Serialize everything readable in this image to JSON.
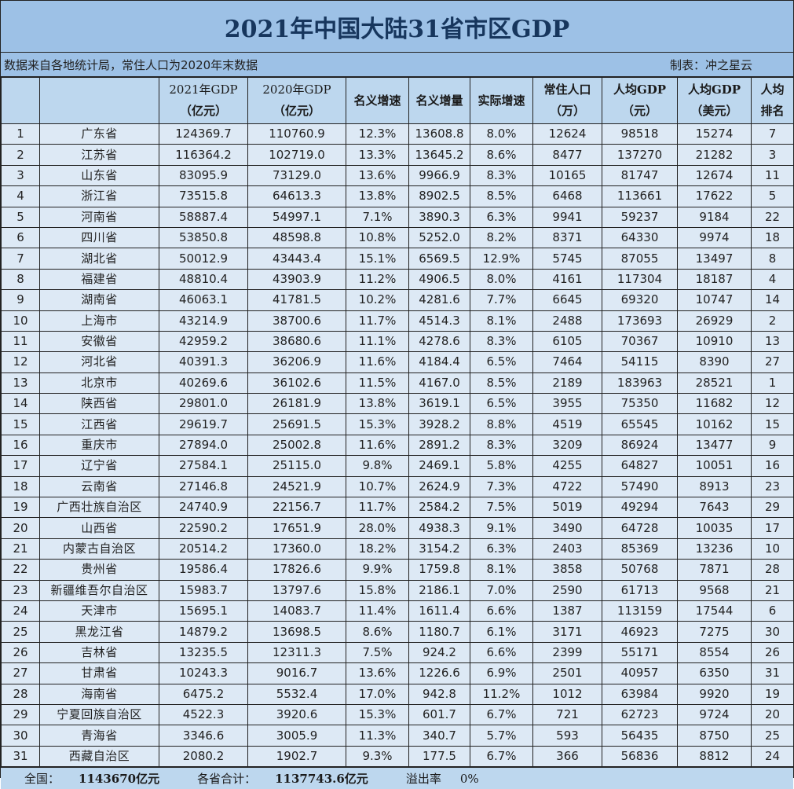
{
  "title": "2021年中国大陆31省市区GDP",
  "note": {
    "source": "数据来自各地统计局，常住人口为2020年末数据",
    "author": "制表：冲之星云"
  },
  "columns": [
    {
      "line1": "",
      "line2": ""
    },
    {
      "line1": "",
      "line2": ""
    },
    {
      "line1": "2021年GDP",
      "line2": "（亿元）"
    },
    {
      "line1": "2020年GDP",
      "line2": "（亿元）"
    },
    {
      "line1": "名义增速",
      "line2": ""
    },
    {
      "line1": "名义增量",
      "line2": ""
    },
    {
      "line1": "实际增速",
      "line2": ""
    },
    {
      "line1": "常住人口",
      "line2": "（万）"
    },
    {
      "line1": "人均GDP",
      "line2": "（元）"
    },
    {
      "line1": "人均GDP",
      "line2": "（美元）"
    },
    {
      "line1": "人均",
      "line2": "排名"
    }
  ],
  "rows": [
    [
      "1",
      "广东省",
      "124369.7",
      "110760.9",
      "12.3%",
      "13608.8",
      "8.0%",
      "12624",
      "98518",
      "15274",
      "7"
    ],
    [
      "2",
      "江苏省",
      "116364.2",
      "102719.0",
      "13.3%",
      "13645.2",
      "8.6%",
      "8477",
      "137270",
      "21282",
      "3"
    ],
    [
      "3",
      "山东省",
      "83095.9",
      "73129.0",
      "13.6%",
      "9966.9",
      "8.3%",
      "10165",
      "81747",
      "12674",
      "11"
    ],
    [
      "4",
      "浙江省",
      "73515.8",
      "64613.3",
      "13.8%",
      "8902.5",
      "8.5%",
      "6468",
      "113661",
      "17622",
      "5"
    ],
    [
      "5",
      "河南省",
      "58887.4",
      "54997.1",
      "7.1%",
      "3890.3",
      "6.3%",
      "9941",
      "59237",
      "9184",
      "22"
    ],
    [
      "6",
      "四川省",
      "53850.8",
      "48598.8",
      "10.8%",
      "5252.0",
      "8.2%",
      "8371",
      "64330",
      "9974",
      "18"
    ],
    [
      "7",
      "湖北省",
      "50012.9",
      "43443.4",
      "15.1%",
      "6569.5",
      "12.9%",
      "5745",
      "87055",
      "13497",
      "8"
    ],
    [
      "8",
      "福建省",
      "48810.4",
      "43903.9",
      "11.2%",
      "4906.5",
      "8.0%",
      "4161",
      "117304",
      "18187",
      "4"
    ],
    [
      "9",
      "湖南省",
      "46063.1",
      "41781.5",
      "10.2%",
      "4281.6",
      "7.7%",
      "6645",
      "69320",
      "10747",
      "14"
    ],
    [
      "10",
      "上海市",
      "43214.9",
      "38700.6",
      "11.7%",
      "4514.3",
      "8.1%",
      "2488",
      "173693",
      "26929",
      "2"
    ],
    [
      "11",
      "安徽省",
      "42959.2",
      "38680.6",
      "11.1%",
      "4278.6",
      "8.3%",
      "6105",
      "70367",
      "10910",
      "13"
    ],
    [
      "12",
      "河北省",
      "40391.3",
      "36206.9",
      "11.6%",
      "4184.4",
      "6.5%",
      "7464",
      "54115",
      "8390",
      "27"
    ],
    [
      "13",
      "北京市",
      "40269.6",
      "36102.6",
      "11.5%",
      "4167.0",
      "8.5%",
      "2189",
      "183963",
      "28521",
      "1"
    ],
    [
      "14",
      "陕西省",
      "29801.0",
      "26181.9",
      "13.8%",
      "3619.1",
      "6.5%",
      "3955",
      "75350",
      "11682",
      "12"
    ],
    [
      "15",
      "江西省",
      "29619.7",
      "25691.5",
      "15.3%",
      "3928.2",
      "8.8%",
      "4519",
      "65545",
      "10162",
      "15"
    ],
    [
      "16",
      "重庆市",
      "27894.0",
      "25002.8",
      "11.6%",
      "2891.2",
      "8.3%",
      "3209",
      "86924",
      "13477",
      "9"
    ],
    [
      "17",
      "辽宁省",
      "27584.1",
      "25115.0",
      "9.8%",
      "2469.1",
      "5.8%",
      "4255",
      "64827",
      "10051",
      "16"
    ],
    [
      "18",
      "云南省",
      "27146.8",
      "24521.9",
      "10.7%",
      "2624.9",
      "7.3%",
      "4722",
      "57490",
      "8913",
      "23"
    ],
    [
      "19",
      "广西壮族自治区",
      "24740.9",
      "22156.7",
      "11.7%",
      "2584.2",
      "7.5%",
      "5019",
      "49294",
      "7643",
      "29"
    ],
    [
      "20",
      "山西省",
      "22590.2",
      "17651.9",
      "28.0%",
      "4938.3",
      "9.1%",
      "3490",
      "64728",
      "10035",
      "17"
    ],
    [
      "21",
      "内蒙古自治区",
      "20514.2",
      "17360.0",
      "18.2%",
      "3154.2",
      "6.3%",
      "2403",
      "85369",
      "13236",
      "10"
    ],
    [
      "22",
      "贵州省",
      "19586.4",
      "17826.6",
      "9.9%",
      "1759.8",
      "8.1%",
      "3858",
      "50768",
      "7871",
      "28"
    ],
    [
      "23",
      "新疆维吾尔自治区",
      "15983.7",
      "13797.6",
      "15.8%",
      "2186.1",
      "7.0%",
      "2590",
      "61713",
      "9568",
      "21"
    ],
    [
      "24",
      "天津市",
      "15695.1",
      "14083.7",
      "11.4%",
      "1611.4",
      "6.6%",
      "1387",
      "113159",
      "17544",
      "6"
    ],
    [
      "25",
      "黑龙江省",
      "14879.2",
      "13698.5",
      "8.6%",
      "1180.7",
      "6.1%",
      "3171",
      "46923",
      "7275",
      "30"
    ],
    [
      "26",
      "吉林省",
      "13235.5",
      "12311.3",
      "7.5%",
      "924.2",
      "6.6%",
      "2399",
      "55171",
      "8554",
      "26"
    ],
    [
      "27",
      "甘肃省",
      "10243.3",
      "9016.7",
      "13.6%",
      "1226.6",
      "6.9%",
      "2501",
      "40957",
      "6350",
      "31"
    ],
    [
      "28",
      "海南省",
      "6475.2",
      "5532.4",
      "17.0%",
      "942.8",
      "11.2%",
      "1012",
      "63984",
      "9920",
      "19"
    ],
    [
      "29",
      "宁夏回族自治区",
      "4522.3",
      "3920.6",
      "15.3%",
      "601.7",
      "6.7%",
      "721",
      "62723",
      "9724",
      "20"
    ],
    [
      "30",
      "青海省",
      "3346.6",
      "3005.9",
      "11.3%",
      "340.7",
      "5.7%",
      "593",
      "56435",
      "8750",
      "25"
    ],
    [
      "31",
      "西藏自治区",
      "2080.2",
      "1902.7",
      "9.3%",
      "177.5",
      "6.7%",
      "366",
      "56836",
      "8812",
      "24"
    ]
  ],
  "footer": {
    "national_label": "全国：",
    "national_value": "1143670亿元",
    "sum_label": "各省合计：",
    "sum_value": "1137743.6亿元",
    "overflow_label": "溢出率",
    "overflow_value": "0%"
  },
  "colors": {
    "title_bg": "#9dc1e6",
    "title_text": "#17365d",
    "header_bg": "#bdd7ee",
    "cell_bg": "#dde9f5",
    "border": "#222222"
  }
}
